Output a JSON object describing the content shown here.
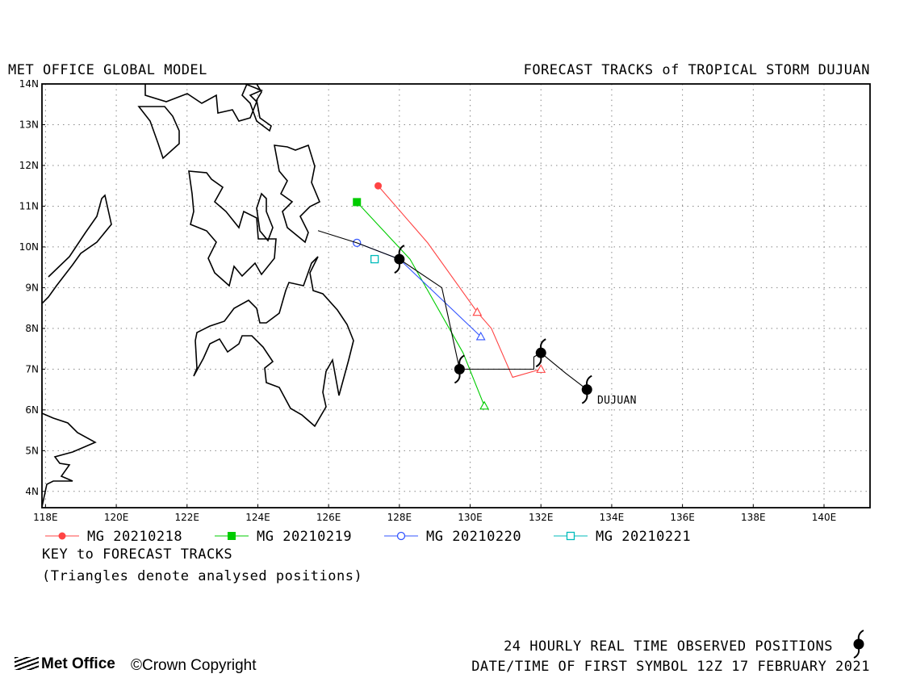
{
  "header": {
    "left_title": "MET OFFICE GLOBAL MODEL",
    "right_title": "FORECAST TRACKS of TROPICAL STORM DUJUAN"
  },
  "axes": {
    "lon_ticks": [
      "118E",
      "120E",
      "122E",
      "124E",
      "126E",
      "128E",
      "130E",
      "132E",
      "134E",
      "136E",
      "138E",
      "140E"
    ],
    "lat_ticks": [
      "14N",
      "13N",
      "12N",
      "11N",
      "10N",
      "9N",
      "8N",
      "7N",
      "6N",
      "5N",
      "4N"
    ]
  },
  "storm": {
    "label": "DUJUAN",
    "observed_positions": [
      {
        "lon": 128.0,
        "lat": 9.7
      },
      {
        "lon": 129.7,
        "lat": 7.0
      },
      {
        "lon": 132.0,
        "lat": 7.4
      },
      {
        "lon": 133.3,
        "lat": 6.5
      }
    ]
  },
  "chart_data": {
    "type": "map-tracks",
    "x_range": [
      117.9,
      141.3
    ],
    "y_range": [
      3.6,
      14.0
    ],
    "grid": true,
    "observed_track": [
      {
        "lon": 125.7,
        "lat": 10.4
      },
      {
        "lon": 126.8,
        "lat": 10.1
      },
      {
        "lon": 128.0,
        "lat": 9.7
      },
      {
        "lon": 129.2,
        "lat": 9.0
      },
      {
        "lon": 129.7,
        "lat": 7.0
      },
      {
        "lon": 131.8,
        "lat": 7.0
      },
      {
        "lon": 131.8,
        "lat": 7.3
      },
      {
        "lon": 132.0,
        "lat": 7.4
      },
      {
        "lon": 132.7,
        "lat": 6.9
      },
      {
        "lon": 133.3,
        "lat": 6.5
      }
    ],
    "series": [
      {
        "name": "MG 20210218",
        "color": "#ff4444",
        "marker": "circle-filled",
        "points": [
          {
            "lon": 127.4,
            "lat": 11.5
          },
          {
            "lon": 128.8,
            "lat": 10.1
          },
          {
            "lon": 130.2,
            "lat": 8.4
          },
          {
            "lon": 130.6,
            "lat": 8.0
          },
          {
            "lon": 131.2,
            "lat": 6.8
          },
          {
            "lon": 132.0,
            "lat": 7.0
          }
        ]
      },
      {
        "name": "MG 20210219",
        "color": "#00cc00",
        "marker": "square-filled",
        "points": [
          {
            "lon": 126.8,
            "lat": 11.1
          },
          {
            "lon": 128.3,
            "lat": 9.7
          },
          {
            "lon": 129.8,
            "lat": 7.4
          },
          {
            "lon": 130.4,
            "lat": 6.1
          }
        ]
      },
      {
        "name": "MG 20210220",
        "color": "#3355ff",
        "marker": "circle-open",
        "points": [
          {
            "lon": 126.8,
            "lat": 10.1
          },
          {
            "lon": 128.0,
            "lat": 9.7
          },
          {
            "lon": 130.3,
            "lat": 7.8
          }
        ]
      },
      {
        "name": "MG 20210221",
        "color": "#00bbbb",
        "marker": "square-open",
        "points": [
          {
            "lon": 127.3,
            "lat": 9.7
          }
        ]
      }
    ]
  },
  "legend": {
    "key_title": "KEY to FORECAST TRACKS",
    "note": "(Triangles denote analysed positions)"
  },
  "footer": {
    "logo_text": "Met Office",
    "copyright": "Crown Copyright",
    "observed_note": "24 HOURLY REAL TIME OBSERVED POSITIONS",
    "first_symbol": "DATE/TIME OF FIRST SYMBOL 12Z 17 FEBRUARY 2021"
  }
}
